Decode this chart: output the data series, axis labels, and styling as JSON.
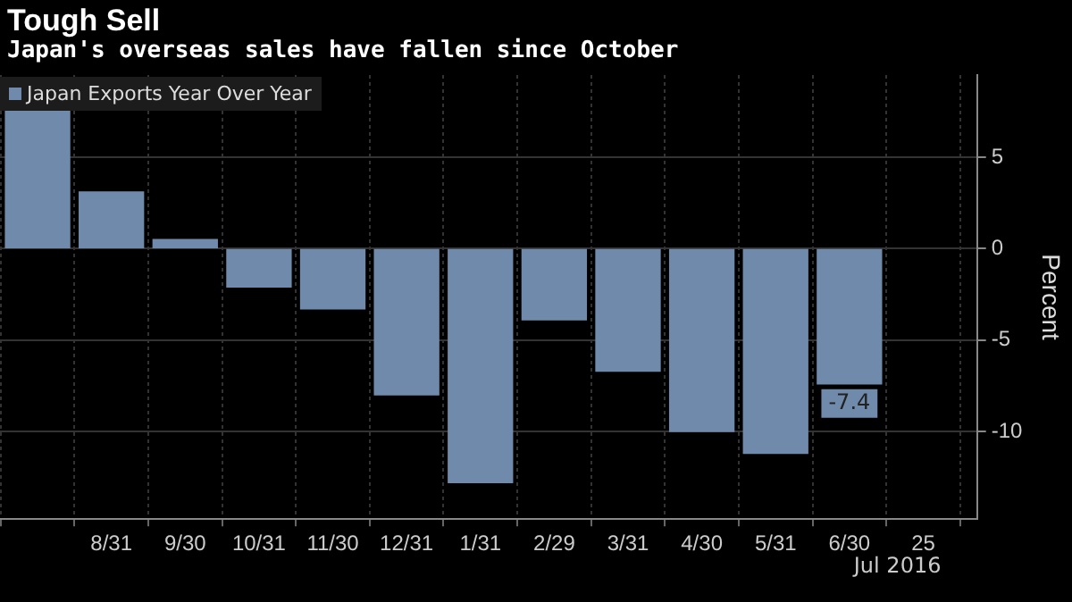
{
  "chart_data": {
    "type": "bar",
    "title": "Tough Sell",
    "subtitle": "Japan's overseas sales have fallen since October",
    "ylabel": "Percent",
    "categories": [
      null,
      "8/31",
      "9/30",
      "10/31",
      "11/30",
      "12/31",
      "1/31",
      "2/29",
      "3/31",
      "4/30",
      "5/31",
      "6/30",
      "25"
    ],
    "series": [
      {
        "name": "Japan Exports Year Over Year",
        "color": "#6f8aab",
        "values": [
          7.6,
          3.1,
          0.5,
          -2.1,
          -3.3,
          -8.0,
          -12.8,
          -3.9,
          -6.7,
          -10.0,
          -11.2,
          -7.4,
          null
        ],
        "value_labels": [
          null,
          null,
          null,
          null,
          null,
          null,
          null,
          null,
          null,
          null,
          null,
          "-7.4",
          null
        ]
      }
    ],
    "ylim": [
      -14.8,
      9.5
    ],
    "yticks": [
      5,
      0,
      -5,
      -10
    ],
    "grid": true,
    "legend": "top left",
    "annotations": [
      "Jul 2016"
    ]
  }
}
